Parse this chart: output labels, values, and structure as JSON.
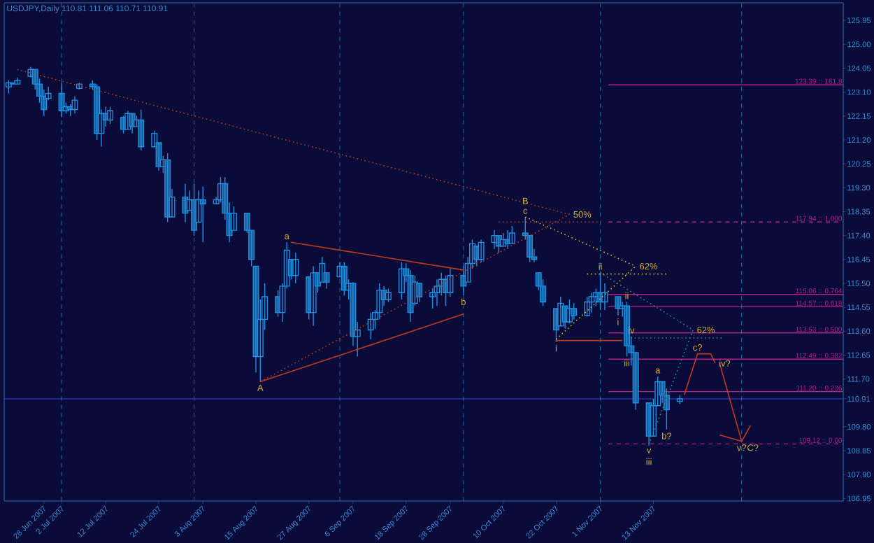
{
  "chart_data": {
    "type": "candlestick",
    "title": "USDJPY,Daily  110.81 111.06 110.71 110.91",
    "color": "#1f8fe0",
    "x": [
      "2007-06-20",
      "2007-06-21",
      "2007-06-22",
      "2007-06-25",
      "2007-06-26",
      "2007-06-27",
      "2007-06-28",
      "2007-06-29",
      "2007-07-02",
      "2007-07-03",
      "2007-07-04",
      "2007-07-05",
      "2007-07-06",
      "2007-07-09",
      "2007-07-10",
      "2007-07-11",
      "2007-07-12",
      "2007-07-13",
      "2007-07-16",
      "2007-07-17",
      "2007-07-18",
      "2007-07-19",
      "2007-07-20",
      "2007-07-23",
      "2007-07-24",
      "2007-07-25",
      "2007-07-26",
      "2007-07-27",
      "2007-07-30",
      "2007-07-31",
      "2007-08-01",
      "2007-08-02",
      "2007-08-03",
      "2007-08-06",
      "2007-08-07",
      "2007-08-08",
      "2007-08-09",
      "2007-08-10",
      "2007-08-13",
      "2007-08-14",
      "2007-08-15",
      "2007-08-16",
      "2007-08-17",
      "2007-08-20",
      "2007-08-21",
      "2007-08-22",
      "2007-08-23",
      "2007-08-24",
      "2007-08-27",
      "2007-08-28",
      "2007-08-29",
      "2007-08-30",
      "2007-08-31",
      "2007-09-03",
      "2007-09-04",
      "2007-09-05",
      "2007-09-06",
      "2007-09-07",
      "2007-09-10",
      "2007-09-11",
      "2007-09-12",
      "2007-09-13",
      "2007-09-14",
      "2007-09-17",
      "2007-09-18",
      "2007-09-19",
      "2007-09-20",
      "2007-09-21",
      "2007-09-24",
      "2007-09-25",
      "2007-09-26",
      "2007-09-27",
      "2007-09-28",
      "2007-10-01",
      "2007-10-02",
      "2007-10-03",
      "2007-10-04",
      "2007-10-05",
      "2007-10-08",
      "2007-10-09",
      "2007-10-10",
      "2007-10-11",
      "2007-10-12",
      "2007-10-15",
      "2007-10-16",
      "2007-10-17",
      "2007-10-18",
      "2007-10-19",
      "2007-10-22",
      "2007-10-23",
      "2007-10-24",
      "2007-10-25",
      "2007-10-26",
      "2007-10-29",
      "2007-10-30",
      "2007-10-31",
      "2007-11-01",
      "2007-11-02",
      "2007-11-05",
      "2007-11-06",
      "2007-11-07",
      "2007-11-08",
      "2007-11-09",
      "2007-11-12",
      "2007-11-13",
      "2007-11-14",
      "2007-11-15",
      "2007-11-16",
      "2007-11-19"
    ],
    "ohlc": [
      [
        123.31,
        123.57,
        123.05,
        123.47
      ],
      [
        123.47,
        123.47,
        123.42,
        123.42
      ],
      [
        123.42,
        123.68,
        123.42,
        123.57
      ],
      [
        123.73,
        124.1,
        123.68,
        124.0
      ],
      [
        124.0,
        124.0,
        123.2,
        123.42
      ],
      [
        123.42,
        123.63,
        122.68,
        122.94
      ],
      [
        122.94,
        123.2,
        122.15,
        122.41
      ],
      [
        122.85,
        123.31,
        122.78,
        123.05
      ],
      [
        123.05,
        123.47,
        122.1,
        122.36
      ],
      [
        122.36,
        122.68,
        122.25,
        122.52
      ],
      [
        122.52,
        122.62,
        122.15,
        122.41
      ],
      [
        122.41,
        122.94,
        122.25,
        122.78
      ],
      [
        123.25,
        123.47,
        123.2,
        123.42
      ],
      [
        123.42,
        123.57,
        123.2,
        123.31
      ],
      [
        123.31,
        123.42,
        121.2,
        121.46
      ],
      [
        121.46,
        122.41,
        120.93,
        122.25
      ],
      [
        122.25,
        122.52,
        121.73,
        121.99
      ],
      [
        121.99,
        122.52,
        121.83,
        122.36
      ],
      [
        122.1,
        122.15,
        121.46,
        121.62
      ],
      [
        121.62,
        122.36,
        121.62,
        122.25
      ],
      [
        122.25,
        122.25,
        121.46,
        121.73
      ],
      [
        121.73,
        122.15,
        121.73,
        121.99
      ],
      [
        121.99,
        122.41,
        120.78,
        120.93
      ],
      [
        120.93,
        121.57,
        120.93,
        121.46
      ],
      [
        121.09,
        121.09,
        119.98,
        120.14
      ],
      [
        120.14,
        120.57,
        119.88,
        120.41
      ],
      [
        120.41,
        120.67,
        117.93,
        118.14
      ],
      [
        118.14,
        119.25,
        118.14,
        118.93
      ],
      [
        118.93,
        119.46,
        117.93,
        118.29
      ],
      [
        118.4,
        119.19,
        118.4,
        118.82
      ],
      [
        118.82,
        119.46,
        117.4,
        117.61
      ],
      [
        117.93,
        119.19,
        117.93,
        118.82
      ],
      [
        118.82,
        119.35,
        117.13,
        118.66
      ],
      [
        118.66,
        118.93,
        118.66,
        118.82
      ],
      [
        118.82,
        119.72,
        118.72,
        119.46
      ],
      [
        119.46,
        119.72,
        118.03,
        118.29
      ],
      [
        118.29,
        118.72,
        117.13,
        117.4
      ],
      [
        117.61,
        118.56,
        117.61,
        118.29
      ],
      [
        118.29,
        118.29,
        117.5,
        117.61
      ],
      [
        117.61,
        117.61,
        116.18,
        116.45
      ],
      [
        116.18,
        116.18,
        111.96,
        112.59
      ],
      [
        112.59,
        114.86,
        111.59,
        114.07
      ],
      [
        114.07,
        115.5,
        113.65,
        114.97
      ],
      [
        114.97,
        115.23,
        114.18,
        114.34
      ],
      [
        114.34,
        115.5,
        113.97,
        115.39
      ],
      [
        115.39,
        117.13,
        115.29,
        116.82
      ],
      [
        116.45,
        116.45,
        115.66,
        115.81
      ],
      [
        115.81,
        116.71,
        115.5,
        116.45
      ],
      [
        115.76,
        115.76,
        114.07,
        114.34
      ],
      [
        114.34,
        116.18,
        113.81,
        115.92
      ],
      [
        115.92,
        115.92,
        115.13,
        115.39
      ],
      [
        115.55,
        116.55,
        115.55,
        116.29
      ],
      [
        115.92,
        115.92,
        115.29,
        115.55
      ],
      [
        115.76,
        116.34,
        115.76,
        116.18
      ],
      [
        116.18,
        116.34,
        115.02,
        115.23
      ],
      [
        115.23,
        115.66,
        114.86,
        115.5
      ],
      [
        115.5,
        115.55,
        113.02,
        113.39
      ],
      [
        113.39,
        113.97,
        112.59,
        113.65
      ],
      [
        113.65,
        114.34,
        113.28,
        114.07
      ],
      [
        114.07,
        114.44,
        113.7,
        114.34
      ],
      [
        114.34,
        115.5,
        114.07,
        115.23
      ],
      [
        115.23,
        115.39,
        114.6,
        114.86
      ],
      [
        114.86,
        115.29,
        114.76,
        115.13
      ],
      [
        115.13,
        116.34,
        114.86,
        116.08
      ],
      [
        116.08,
        116.29,
        115.55,
        115.81
      ],
      [
        115.81,
        116.03,
        113.97,
        114.34
      ],
      [
        114.71,
        115.81,
        114.6,
        115.55
      ],
      [
        115.5,
        115.5,
        114.76,
        114.97
      ],
      [
        114.97,
        115.29,
        114.5,
        115.13
      ],
      [
        115.13,
        115.66,
        114.6,
        115.39
      ],
      [
        115.39,
        115.92,
        115.02,
        115.66
      ],
      [
        115.66,
        115.81,
        114.6,
        115.13
      ],
      [
        115.13,
        116.08,
        114.97,
        115.81
      ],
      [
        115.81,
        116.18,
        115.02,
        115.39
      ],
      [
        115.55,
        116.55,
        115.55,
        116.29
      ],
      [
        116.29,
        117.24,
        116.08,
        117.08
      ],
      [
        116.98,
        116.98,
        116.18,
        116.45
      ],
      [
        116.45,
        117.24,
        116.34,
        117.13
      ],
      [
        117.13,
        117.61,
        116.87,
        117.4
      ],
      [
        117.4,
        117.4,
        116.71,
        116.98
      ],
      [
        116.98,
        117.5,
        116.98,
        117.24
      ],
      [
        117.24,
        117.61,
        116.87,
        117.08
      ],
      [
        117.08,
        117.77,
        117.08,
        117.5
      ],
      [
        117.5,
        118.14,
        117.24,
        117.4
      ],
      [
        117.4,
        117.4,
        116.34,
        116.55
      ],
      [
        116.55,
        116.87,
        116.34,
        116.45
      ],
      [
        115.92,
        115.92,
        115.23,
        115.39
      ],
      [
        115.39,
        115.66,
        114.6,
        114.76
      ],
      [
        114.5,
        114.5,
        113.18,
        113.65
      ],
      [
        113.81,
        114.97,
        113.81,
        114.71
      ],
      [
        114.6,
        114.6,
        113.7,
        113.97
      ],
      [
        113.97,
        114.86,
        113.91,
        114.5
      ],
      [
        114.5,
        114.71,
        114.07,
        114.23
      ],
      [
        114.23,
        114.97,
        114.18,
        114.76
      ],
      [
        114.76,
        115.13,
        114.34,
        114.97
      ],
      [
        114.97,
        115.29,
        114.6,
        115.13
      ],
      [
        115.13,
        115.92,
        114.44,
        114.76
      ],
      [
        114.76,
        115.5,
        114.44,
        115.13
      ],
      [
        114.97,
        114.97,
        114.23,
        114.5
      ],
      [
        114.5,
        114.76,
        114.18,
        114.6
      ],
      [
        114.6,
        114.76,
        112.59,
        113.02
      ],
      [
        113.02,
        113.39,
        112.23,
        112.75
      ],
      [
        112.75,
        112.75,
        110.48,
        110.75
      ],
      [
        110.75,
        110.75,
        109.06,
        109.43
      ],
      [
        109.43,
        110.91,
        109.43,
        110.64
      ],
      [
        110.64,
        111.8,
        110.64,
        111.59
      ],
      [
        111.59,
        111.59,
        110.75,
        111.06
      ],
      [
        111.06,
        111.33,
        109.69,
        110.48
      ],
      [
        110.81,
        111.06,
        110.71,
        110.91
      ]
    ],
    "series": [
      {
        "type": "line",
        "color": "#c03a1e",
        "line_style": "dotted",
        "x": [
          "2007-06-22",
          "2007-10-25"
        ],
        "values": [
          124.0,
          118.24
        ]
      },
      {
        "type": "line",
        "color": "#c03a1e",
        "line_style": "solid",
        "x": [
          "2007-08-23",
          "2007-10-01"
        ],
        "values": [
          117.13,
          116.03
        ]
      },
      {
        "type": "line",
        "color": "#c03a1e",
        "line_style": "solid",
        "x": [
          "2007-08-16",
          "2007-10-01"
        ],
        "values": [
          111.59,
          114.28
        ]
      },
      {
        "type": "line",
        "color": "#c03a1e",
        "line_style": "dotted",
        "x": [
          "2007-08-16",
          "2007-10-25"
        ],
        "values": [
          111.59,
          118.24
        ]
      },
      {
        "type": "line",
        "color": "#c03a1e",
        "line_style": "dotted",
        "x": [
          "2007-10-09",
          "2007-11-01"
        ],
        "values": [
          117.94,
          117.94
        ]
      },
      {
        "type": "line",
        "color": "#c8c020",
        "line_style": "dotted",
        "x": [
          "2007-10-15",
          "2007-11-09"
        ],
        "values": [
          118.14,
          116.18
        ]
      },
      {
        "type": "line",
        "color": "#c8c020",
        "line_style": "dotted",
        "x": [
          "2007-10-22",
          "2007-11-09"
        ],
        "values": [
          113.28,
          116.18
        ]
      },
      {
        "type": "line",
        "color": "#c8c020",
        "line_style": "dotted",
        "x": [
          "2007-10-29",
          "2007-11-16"
        ],
        "values": [
          115.87,
          115.87
        ]
      },
      {
        "type": "line",
        "color": "#1a9a8a",
        "line_style": "dotted",
        "x": [
          "2007-11-01",
          "2007-11-22"
        ],
        "values": [
          115.92,
          113.65
        ]
      },
      {
        "type": "line",
        "color": "#1a9a8a",
        "line_style": "dotted",
        "x": [
          "2007-11-07",
          "2007-11-29"
        ],
        "values": [
          113.33,
          113.33
        ]
      },
      {
        "type": "line",
        "color": "#1a9a8a",
        "line_style": "dotted",
        "x": [
          "2007-11-12",
          "2007-11-22"
        ],
        "values": [
          109.11,
          113.65
        ]
      },
      {
        "type": "line",
        "color": "#c03a1e",
        "line_style": "solid",
        "x": [
          "2007-10-22",
          "2007-11-06"
        ],
        "values": [
          113.23,
          113.23
        ]
      },
      {
        "type": "line",
        "color": "#c03a1e",
        "line_style": "solid",
        "x": [
          "2007-11-20",
          "2007-11-23",
          "2007-11-26",
          "2007-11-27"
        ],
        "values": [
          111.06,
          112.7,
          112.7,
          112.33
        ]
      },
      {
        "type": "line",
        "color": "#c03a1e",
        "line_style": "solid",
        "x": [
          "2007-11-28",
          "2007-12-03",
          "2007-12-05"
        ],
        "values": [
          112.33,
          109.22,
          109.86
        ]
      },
      {
        "type": "line",
        "color": "#c03a1e",
        "line_style": "solid",
        "x": [
          "2007-11-28",
          "2007-12-03"
        ],
        "values": [
          109.48,
          109.22
        ]
      }
    ],
    "ref_lines": [
      {
        "axis": "y",
        "value": 123.39,
        "label": "123.39 :: 161.8",
        "color": "#b0208a",
        "line_style": "solid"
      },
      {
        "axis": "y",
        "value": 117.94,
        "label": "117.94 :: 1.000",
        "color": "#b0208a",
        "line_style": "dashed"
      },
      {
        "axis": "y",
        "value": 115.06,
        "label": "115.06 :: 0.764",
        "color": "#b0208a",
        "line_style": "solid"
      },
      {
        "axis": "y",
        "value": 114.57,
        "label": "114.57 :: 0.618",
        "color": "#b0208a",
        "line_style": "solid"
      },
      {
        "axis": "y",
        "value": 113.53,
        "label": "113.53 :: 0.500",
        "color": "#b0208a",
        "line_style": "solid"
      },
      {
        "axis": "y",
        "value": 112.49,
        "label": "112.49 :: 0.382",
        "color": "#b0208a",
        "line_style": "solid"
      },
      {
        "axis": "y",
        "value": 111.2,
        "label": "111.20 :: 0.236",
        "color": "#b0208a",
        "line_style": "solid"
      },
      {
        "axis": "y",
        "value": 109.12,
        "label": "109.12 :: 0.00",
        "color": "#b0208a",
        "line_style": "dashed"
      },
      {
        "axis": "y",
        "value": 110.91,
        "color": "#2a2ab8",
        "line_style": "solid"
      },
      {
        "axis": "x",
        "value": "2007-07-02",
        "color": "#1e6fa8",
        "line_style": "dashed"
      },
      {
        "axis": "x",
        "value": "2007-08-01",
        "color": "#1e6fa8",
        "line_style": "dashed"
      },
      {
        "axis": "x",
        "value": "2007-09-03",
        "color": "#1e6fa8",
        "line_style": "dashed"
      },
      {
        "axis": "x",
        "value": "2007-10-01",
        "color": "#1e6fa8",
        "line_style": "dashed"
      },
      {
        "axis": "x",
        "value": "2007-11-01",
        "color": "#1e6fa8",
        "line_style": "dashed"
      },
      {
        "axis": "x",
        "value": "2007-12-03",
        "color": "#1e6fa8",
        "line_style": "dashed"
      }
    ],
    "annotations": [
      {
        "text": "A",
        "x": "2007-08-16",
        "y": 111.59
      },
      {
        "text": "a",
        "x": "2007-08-22",
        "y": 117.13
      },
      {
        "text": "b",
        "x": "2007-10-01",
        "y": 115.02
      },
      {
        "text": "c",
        "x": "2007-10-15",
        "y": 118.14
      },
      {
        "text": "B",
        "x": "2007-10-15",
        "y": 118.14
      },
      {
        "text": "50%",
        "x": "2007-10-25",
        "y": 118.24
      },
      {
        "text": "i",
        "x": "2007-10-22",
        "y": 113.18
      },
      {
        "text": "ii",
        "x": "2007-11-01",
        "y": 115.92
      },
      {
        "text": "62%",
        "x": "2007-11-09",
        "y": 116.18
      },
      {
        "text": "i",
        "x": "2007-11-05",
        "y": 114.23
      },
      {
        "text": "ii",
        "x": "2007-11-07",
        "y": 114.76
      },
      {
        "text": "iii",
        "x": "2007-11-07",
        "y": 112.59
      },
      {
        "text": "iv",
        "x": "2007-11-08",
        "y": 113.39
      },
      {
        "text": "v",
        "x": "2007-11-12",
        "y": 109.06
      },
      {
        "text": "iii",
        "x": "2007-11-12",
        "y": 109.06
      },
      {
        "text": "a",
        "x": "2007-11-14",
        "y": 111.8
      },
      {
        "text": "b?",
        "x": "2007-11-16",
        "y": 109.69
      },
      {
        "text": "62%",
        "x": "2007-11-22",
        "y": 113.65
      },
      {
        "text": "c?",
        "x": "2007-11-23",
        "y": 112.7
      },
      {
        "text": "iv?",
        "x": "2007-11-27",
        "y": 112.33
      },
      {
        "text": "v?",
        "x": "2007-12-03",
        "y": 109.22
      },
      {
        "text": "C?",
        "x": "2007-12-03",
        "y": 109.22
      }
    ],
    "xlim": [
      "2007-06-19",
      "2007-12-26"
    ],
    "ylim": [
      106.85,
      126.65
    ],
    "xticks": [
      {
        "value": "2007-06-28",
        "label": "28 Jun 2007"
      },
      {
        "value": "2007-07-02",
        "label": "2 Jul 2007"
      },
      {
        "value": "2007-07-12",
        "label": "12 Jul 2007"
      },
      {
        "value": "2007-07-24",
        "label": "24 Jul 2007"
      },
      {
        "value": "2007-08-03",
        "label": "3 Aug 2007"
      },
      {
        "value": "2007-08-15",
        "label": "15 Aug 2007"
      },
      {
        "value": "2007-08-27",
        "label": "27 Aug 2007"
      },
      {
        "value": "2007-09-06",
        "label": "6 Sep 2007"
      },
      {
        "value": "2007-09-18",
        "label": "18 Sep 2007"
      },
      {
        "value": "2007-09-28",
        "label": "28 Sep 2007"
      },
      {
        "value": "2007-10-10",
        "label": "10 Oct 2007"
      },
      {
        "value": "2007-10-22",
        "label": "22 Oct 2007"
      },
      {
        "value": "2007-11-01",
        "label": "1 Nov 2007"
      },
      {
        "value": "2007-11-13",
        "label": "13 Nov 2007"
      }
    ],
    "yticks": [
      125.95,
      {
        "value": 125.0,
        "label": "125.00"
      },
      124.05,
      {
        "value": 123.1,
        "label": "123.10"
      },
      122.15,
      {
        "value": 121.2,
        "label": "121.20"
      },
      120.25,
      {
        "value": 119.3,
        "label": "119.30"
      },
      118.35,
      {
        "value": 117.4,
        "label": "117.40"
      },
      116.45,
      {
        "value": 115.5,
        "label": "115.50"
      },
      114.55,
      {
        "value": 113.6,
        "label": "113.60"
      },
      112.65,
      {
        "value": 111.7,
        "label": "111.70"
      },
      110.91,
      {
        "value": 109.8,
        "label": "109.80"
      },
      108.85,
      {
        "value": 107.9,
        "label": "107.90"
      },
      106.95
    ]
  }
}
